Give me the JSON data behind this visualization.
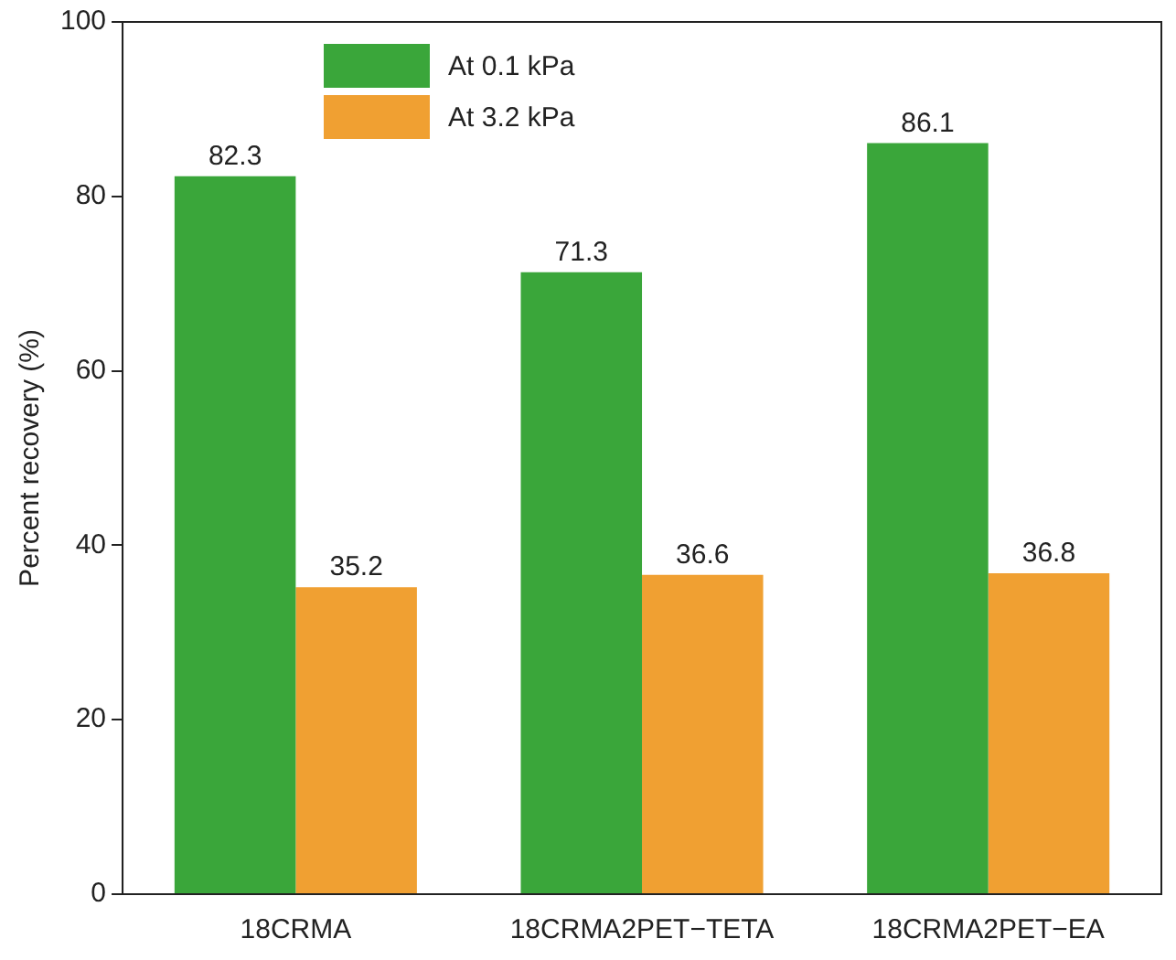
{
  "chart_data": {
    "type": "bar",
    "ylabel": "Percent recovery (%)",
    "categories": [
      "18CRMA",
      "18CRMA2PET−TETA",
      "18CRMA2PET−EA"
    ],
    "series": [
      {
        "name": "At 0.1 kPa",
        "color": "#3aa63a",
        "values": [
          82.3,
          71.3,
          86.1
        ]
      },
      {
        "name": "At 3.2 kPa",
        "color": "#f0a032",
        "values": [
          35.2,
          36.6,
          36.8
        ]
      }
    ],
    "ylim": [
      0,
      100
    ],
    "yticks": [
      0,
      20,
      40,
      60,
      80,
      100
    ],
    "grid": false,
    "legend": "top left",
    "data_labels": true
  }
}
